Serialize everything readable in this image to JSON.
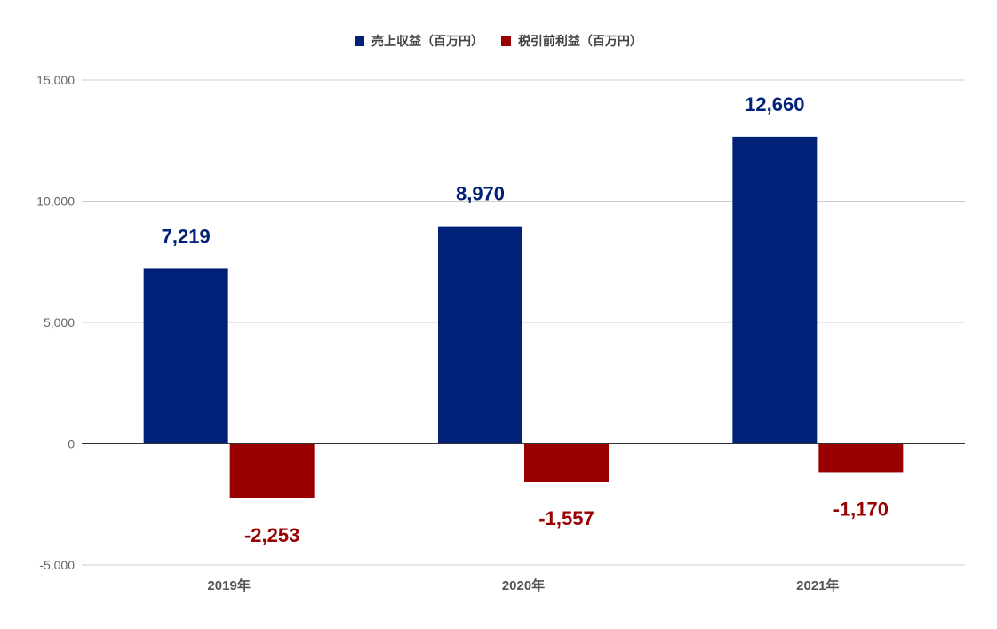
{
  "chart_data": {
    "type": "bar",
    "categories": [
      "2019年",
      "2020年",
      "2021年"
    ],
    "series": [
      {
        "name": "売上収益（百万円）",
        "values": [
          7219,
          8970,
          12660
        ],
        "labels": [
          "7,219",
          "8,970",
          "12,660"
        ],
        "color": "#002177"
      },
      {
        "name": "税引前利益（百万円）",
        "values": [
          -2253,
          -1557,
          -1170
        ],
        "labels": [
          "-2,253",
          "-1,557",
          "-1,170"
        ],
        "color": "#990000"
      }
    ],
    "yticks": [
      15000,
      10000,
      5000,
      0,
      -5000
    ],
    "ytick_labels": [
      "15,000",
      "10,000",
      "5,000",
      "0",
      "-5,000"
    ],
    "ylim": [
      -5000,
      15000
    ],
    "grid": true,
    "legend_position": "top-center",
    "title": "",
    "xlabel": "",
    "ylabel": ""
  }
}
